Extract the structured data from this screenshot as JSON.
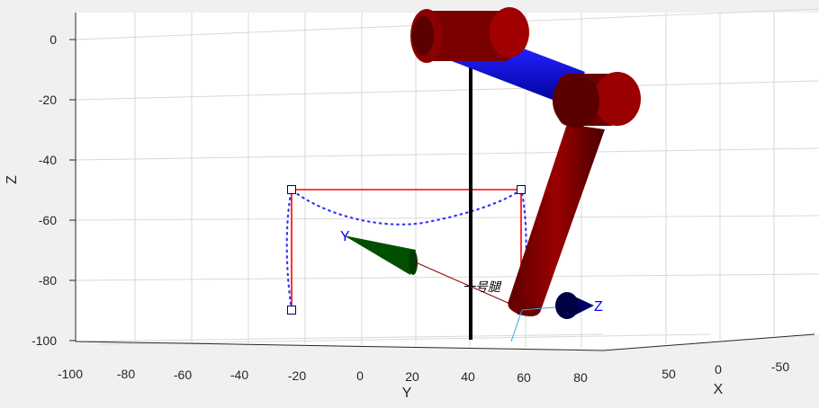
{
  "figure": {
    "background": "#f0f0f0",
    "plot_background": "#ffffff",
    "axes": {
      "x_label": "X",
      "y_label": "Y",
      "z_label": "Z",
      "y_ticks": [
        "-100",
        "-80",
        "-60",
        "-40",
        "-20",
        "0",
        "20",
        "40",
        "60",
        "80"
      ],
      "x_ticks": [
        "50",
        "0",
        "-50"
      ],
      "z_ticks": [
        "0",
        "-20",
        "-40",
        "-60",
        "-80",
        "-100"
      ]
    },
    "frame_labels": {
      "y": "Y",
      "z": "Z"
    },
    "annotation": "一号腿",
    "colors": {
      "link_red": "#8b0000",
      "link_blue": "#0000c8",
      "path_solid": "#ff0000",
      "path_dotted": "#3333ff",
      "cone_green": "#005000",
      "cone_navy": "#000066",
      "pole": "#000000"
    }
  }
}
